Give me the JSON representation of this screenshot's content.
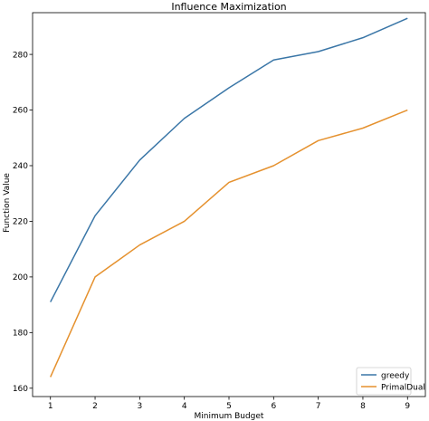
{
  "chart_data": {
    "type": "line",
    "title": "Influence Maximization",
    "xlabel": "Minimum Budget",
    "ylabel": "Function Value",
    "x": [
      1,
      2,
      3,
      4,
      5,
      6,
      7,
      8,
      9
    ],
    "xlim": [
      0.6,
      9.4
    ],
    "ylim": [
      157,
      295
    ],
    "xticks": [
      1,
      2,
      3,
      4,
      5,
      6,
      7,
      8,
      9
    ],
    "yticks": [
      160,
      180,
      200,
      220,
      240,
      260,
      280
    ],
    "grid": false,
    "legend_position": "lower right",
    "series": [
      {
        "name": "greedy",
        "color": "#3a76a7",
        "values": [
          191,
          222,
          242,
          257,
          268,
          278,
          281,
          286,
          293
        ]
      },
      {
        "name": "PrimalDual",
        "color": "#e5912e",
        "values": [
          164,
          200,
          211.5,
          220,
          234,
          240,
          249,
          253.5,
          260
        ]
      }
    ]
  }
}
